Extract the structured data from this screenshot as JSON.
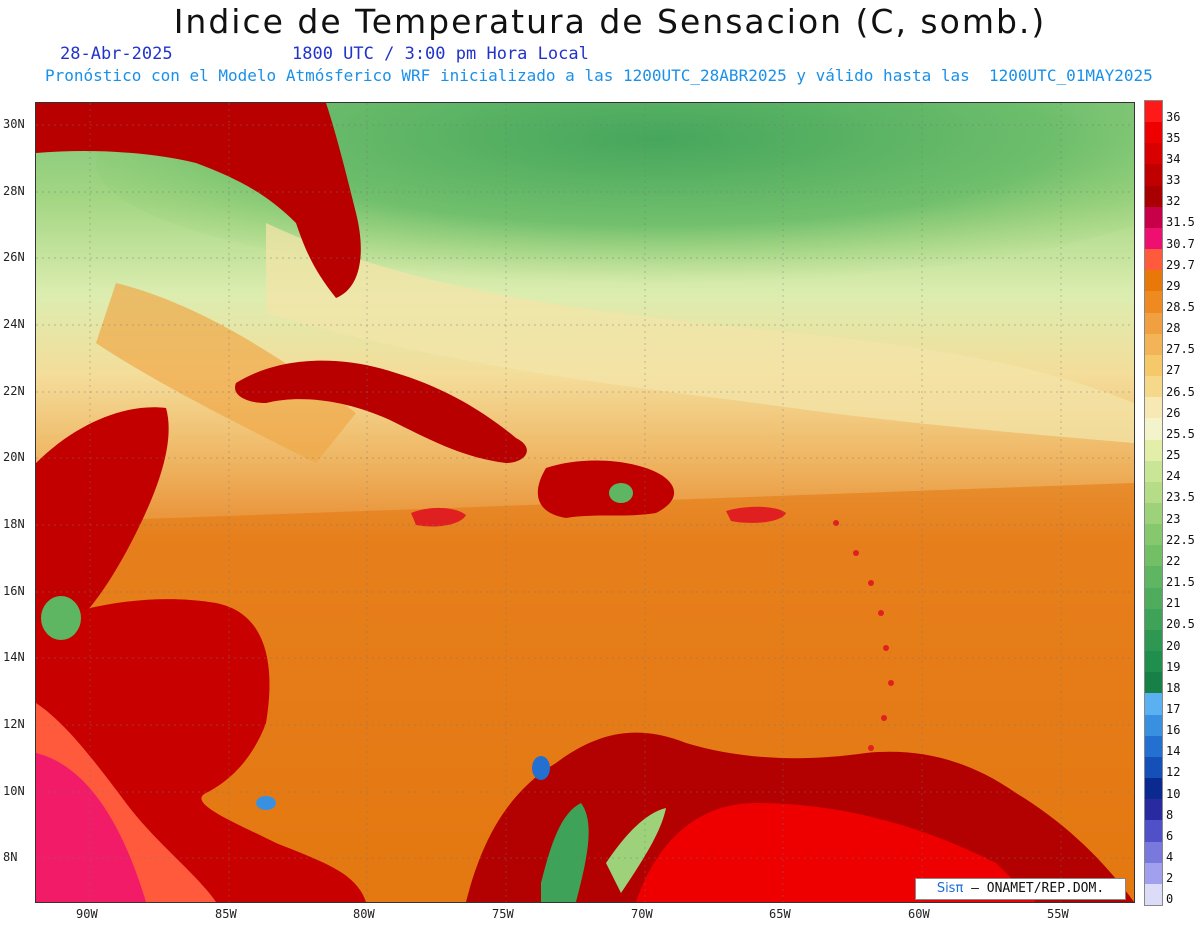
{
  "header": {
    "title": "Indice de Temperatura de Sensacion (C, somb.)",
    "date": "28-Abr-2025",
    "time": "1800 UTC / 3:00 pm Hora Local",
    "model_info": "Pronóstico con el Modelo Atmósferico WRF inicializado a las 1200UTC_28ABR2025 y válido hasta las  1200UTC_01MAY2025"
  },
  "axes": {
    "lat_labels": [
      "30N",
      "28N",
      "26N",
      "24N",
      "22N",
      "20N",
      "18N",
      "16N",
      "14N",
      "12N",
      "10N",
      "8N"
    ],
    "lon_labels": [
      "90W",
      "85W",
      "80W",
      "75W",
      "70W",
      "65W",
      "60W",
      "55W"
    ]
  },
  "legend": {
    "labels": [
      "36",
      "35",
      "34",
      "33",
      "32",
      "31.5",
      "30.7",
      "29.7",
      "29",
      "28.5",
      "28",
      "27.5",
      "27",
      "26.5",
      "26",
      "25.5",
      "25",
      "24",
      "23.5",
      "23",
      "22.5",
      "22",
      "21.5",
      "21",
      "20.5",
      "20",
      "19",
      "18",
      "17",
      "16",
      "14",
      "12",
      "10",
      "8",
      "6",
      "4",
      "2",
      "0"
    ],
    "colors": [
      "#ff1a1a",
      "#ee0000",
      "#d80000",
      "#c00000",
      "#a80000",
      "#c8004a",
      "#ee1070",
      "#ff5a3c",
      "#e8780a",
      "#ee8a20",
      "#f0a040",
      "#f3b458",
      "#f5c86a",
      "#f6d88a",
      "#f7e8b4",
      "#f3f3cc",
      "#e3eea8",
      "#c9e596",
      "#b5dc86",
      "#9dd27a",
      "#86c86e",
      "#72bf66",
      "#5fb662",
      "#4eac5c",
      "#3ea258",
      "#2e9852",
      "#208e4c",
      "#178046",
      "#5ab0f0",
      "#3a90e0",
      "#2470d0",
      "#1450b8",
      "#0a2a90",
      "#2a2aa0",
      "#5050c8",
      "#7878dd",
      "#a0a0ee",
      "#dcdcf8"
    ]
  },
  "credit": {
    "brand": "Sisπ",
    "text": "– ONAMET/REP.DOM."
  }
}
